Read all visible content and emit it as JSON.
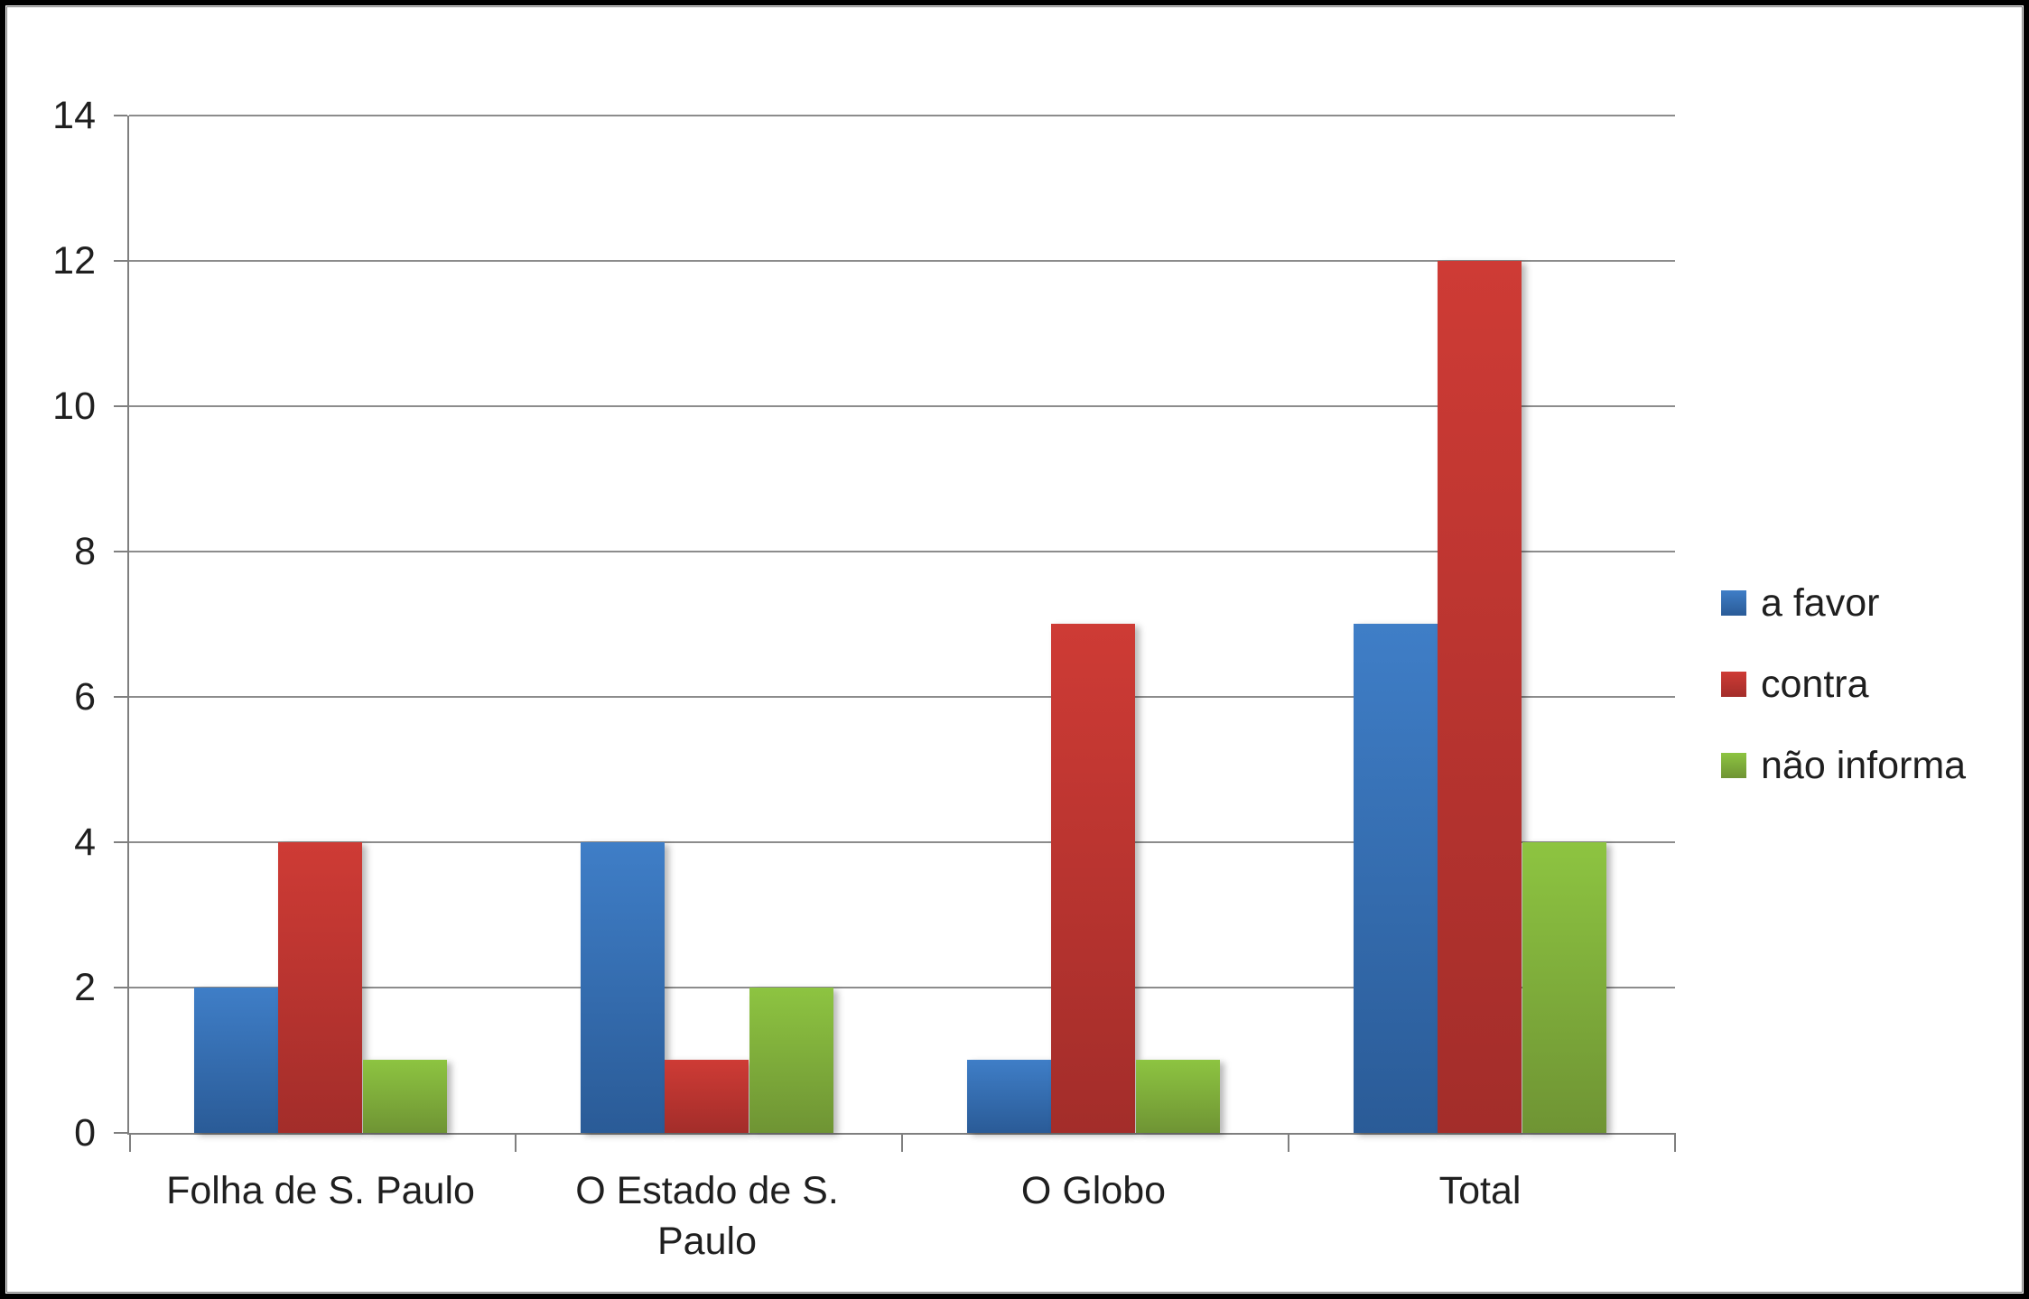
{
  "chart_data": {
    "type": "bar",
    "title": "",
    "xlabel": "",
    "ylabel": "",
    "categories": [
      "Folha de S. Paulo",
      "O Estado de S. Paulo",
      "O Globo",
      "Total"
    ],
    "category_label_lines": [
      [
        "Folha de S. Paulo"
      ],
      [
        "O Estado de S.",
        "Paulo"
      ],
      [
        "O Globo"
      ],
      [
        "Total"
      ]
    ],
    "series": [
      {
        "name": "a favor",
        "values": [
          2,
          4,
          1,
          7
        ],
        "color_top": "#3F7EC7",
        "color_bottom": "#2A5B97"
      },
      {
        "name": "contra",
        "values": [
          4,
          1,
          7,
          12
        ],
        "color_top": "#CE3B35",
        "color_bottom": "#A32D2A"
      },
      {
        "name": "não informa",
        "values": [
          1,
          2,
          1,
          4
        ],
        "color_top": "#8DC441",
        "color_bottom": "#6F9434"
      }
    ],
    "ylim": [
      0,
      14
    ],
    "yticks": [
      0,
      2,
      4,
      6,
      8,
      10,
      12,
      14
    ],
    "grid": "horizontal",
    "legend_position": "right"
  },
  "colors": {
    "background": "#FFFFFF",
    "frame": "#000000",
    "gridline": "#8C8C8C",
    "axis": "#7F7F7F",
    "text": "#1F1F1F"
  }
}
